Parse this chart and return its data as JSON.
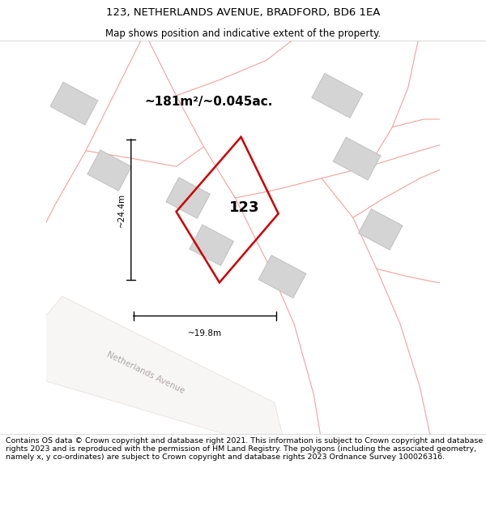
{
  "title": "123, NETHERLANDS AVENUE, BRADFORD, BD6 1EA",
  "subtitle": "Map shows position and indicative extent of the property.",
  "footer": "Contains OS data © Crown copyright and database right 2021. This information is subject to Crown copyright and database rights 2023 and is reproduced with the permission of HM Land Registry. The polygons (including the associated geometry, namely x, y co-ordinates) are subject to Crown copyright and database rights 2023 Ordnance Survey 100026316.",
  "title_fontsize": 9.5,
  "subtitle_fontsize": 8.5,
  "footer_fontsize": 6.8,
  "area_label": "~181m²/~0.045ac.",
  "number_label": "123",
  "dim_h_label": "~24.4m",
  "dim_w_label": "~19.8m",
  "street_label": "Netherlands Avenue",
  "boundary_color": "#f5a0a0",
  "main_poly_color": "#cc0000",
  "building_fill": "#d4d4d4",
  "building_edge": "#bbbbbb",
  "map_bg": "#ede8e8",
  "road_fill": "#f8f5f5",
  "road_edge": "#e0d8d8"
}
